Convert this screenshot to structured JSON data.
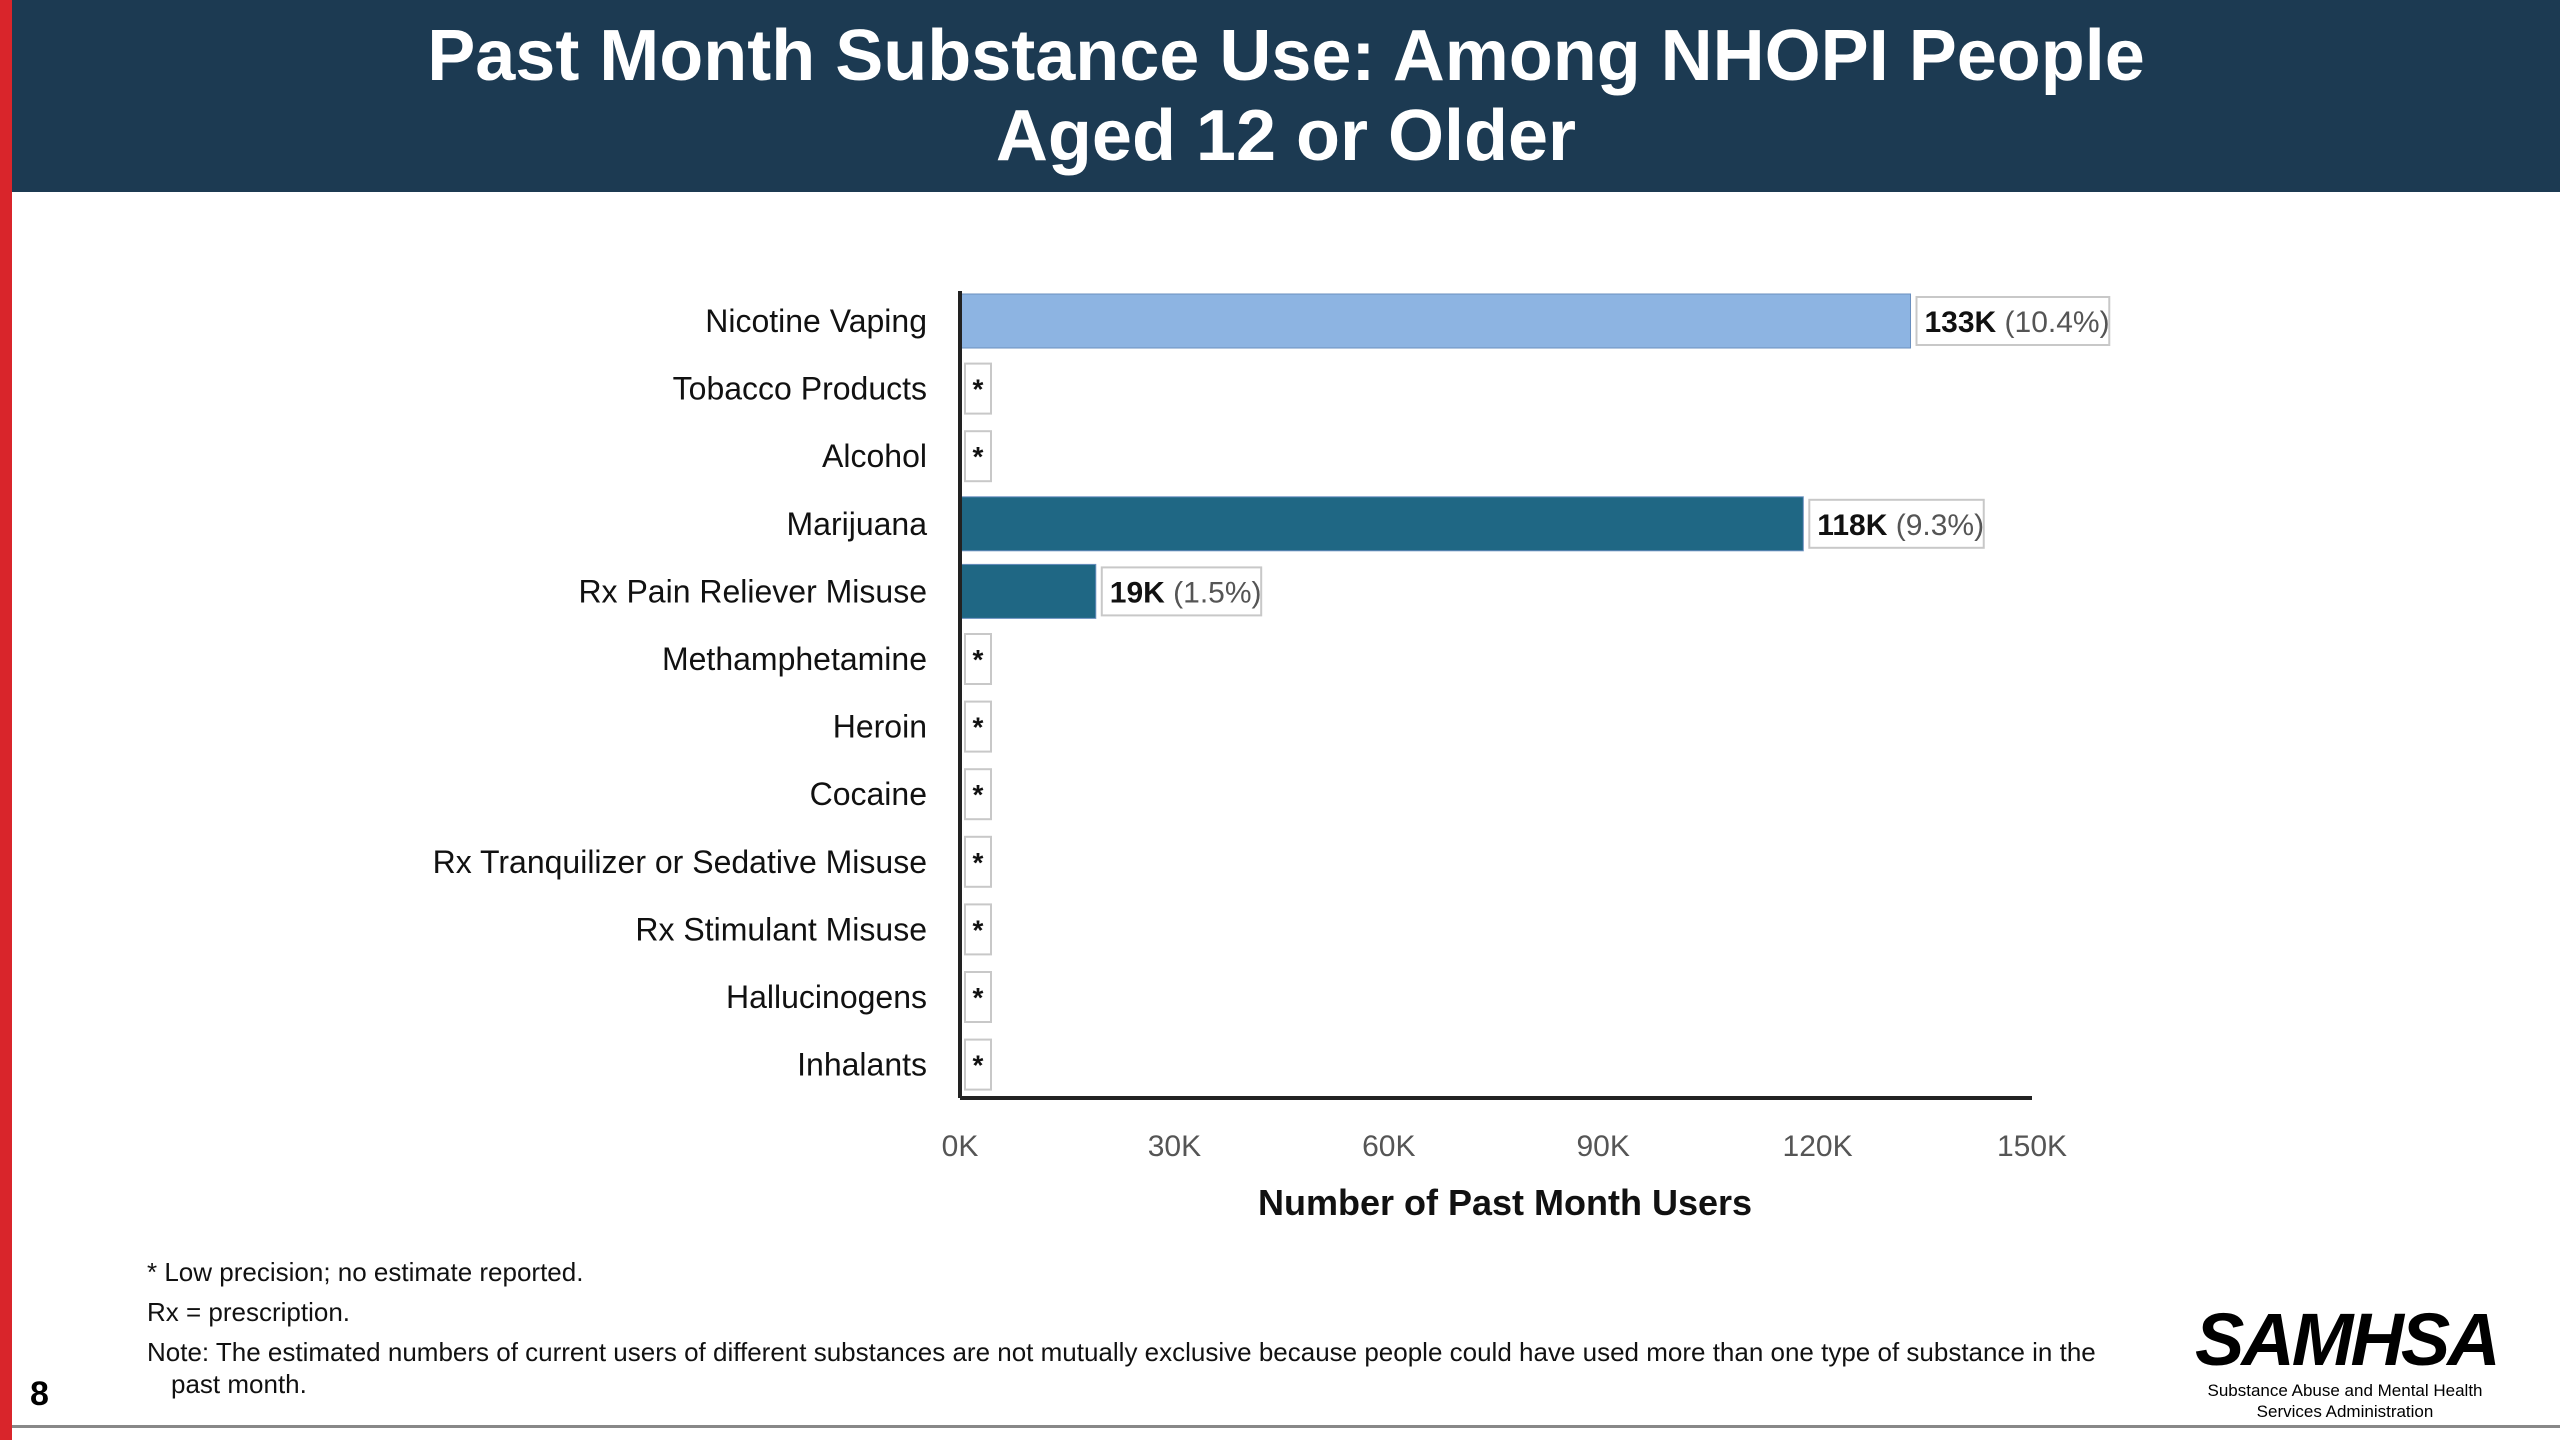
{
  "slide": {
    "title_line1": "Past Month Substance Use: Among NHOPI People",
    "title_line2": "Aged 12 or Older",
    "page_number": "8",
    "footnotes": [
      "* Low precision; no estimate reported.",
      "Rx = prescription.",
      "Note: The estimated numbers of current users of different substances are not mutually exclusive because people could have used more than one type of substance in the past month."
    ],
    "logo": {
      "name": "SAMHSA",
      "subtitle_line1": "Substance Abuse and Mental Health",
      "subtitle_line2": "Services Administration"
    }
  },
  "colors": {
    "header_bg": "#1c3a52",
    "accent_red": "#d9252b",
    "nicotine_bar": "#8db4e2",
    "other_bars": "#1f6784"
  },
  "chart_data": {
    "type": "bar",
    "orientation": "horizontal",
    "title": "",
    "xlabel": "Number of Past Month Users",
    "ylabel": "",
    "xlim": [
      0,
      150000
    ],
    "xticks": [
      "0K",
      "30K",
      "60K",
      "90K",
      "120K",
      "150K"
    ],
    "grid": false,
    "categories": [
      "Nicotine Vaping",
      "Tobacco Products",
      "Alcohol",
      "Marijuana",
      "Rx Pain Reliever Misuse",
      "Methamphetamine",
      "Heroin",
      "Cocaine",
      "Rx Tranquilizer or Sedative Misuse",
      "Rx Stimulant Misuse",
      "Hallucinogens",
      "Inhalants"
    ],
    "values": [
      133000,
      null,
      null,
      118000,
      19000,
      null,
      null,
      null,
      null,
      null,
      null,
      null
    ],
    "labels": [
      {
        "count": "133K",
        "percent": "(10.4%)"
      },
      {
        "count": "*",
        "percent": ""
      },
      {
        "count": "*",
        "percent": ""
      },
      {
        "count": "118K",
        "percent": "(9.3%)"
      },
      {
        "count": "19K",
        "percent": "(1.5%)"
      },
      {
        "count": "*",
        "percent": ""
      },
      {
        "count": "*",
        "percent": ""
      },
      {
        "count": "*",
        "percent": ""
      },
      {
        "count": "*",
        "percent": ""
      },
      {
        "count": "*",
        "percent": ""
      },
      {
        "count": "*",
        "percent": ""
      },
      {
        "count": "*",
        "percent": ""
      }
    ],
    "bar_colors": [
      "#8db4e2",
      "#1f6784",
      "#1f6784",
      "#1f6784",
      "#1f6784",
      "#1f6784",
      "#1f6784",
      "#1f6784",
      "#1f6784",
      "#1f6784",
      "#1f6784",
      "#1f6784"
    ]
  }
}
